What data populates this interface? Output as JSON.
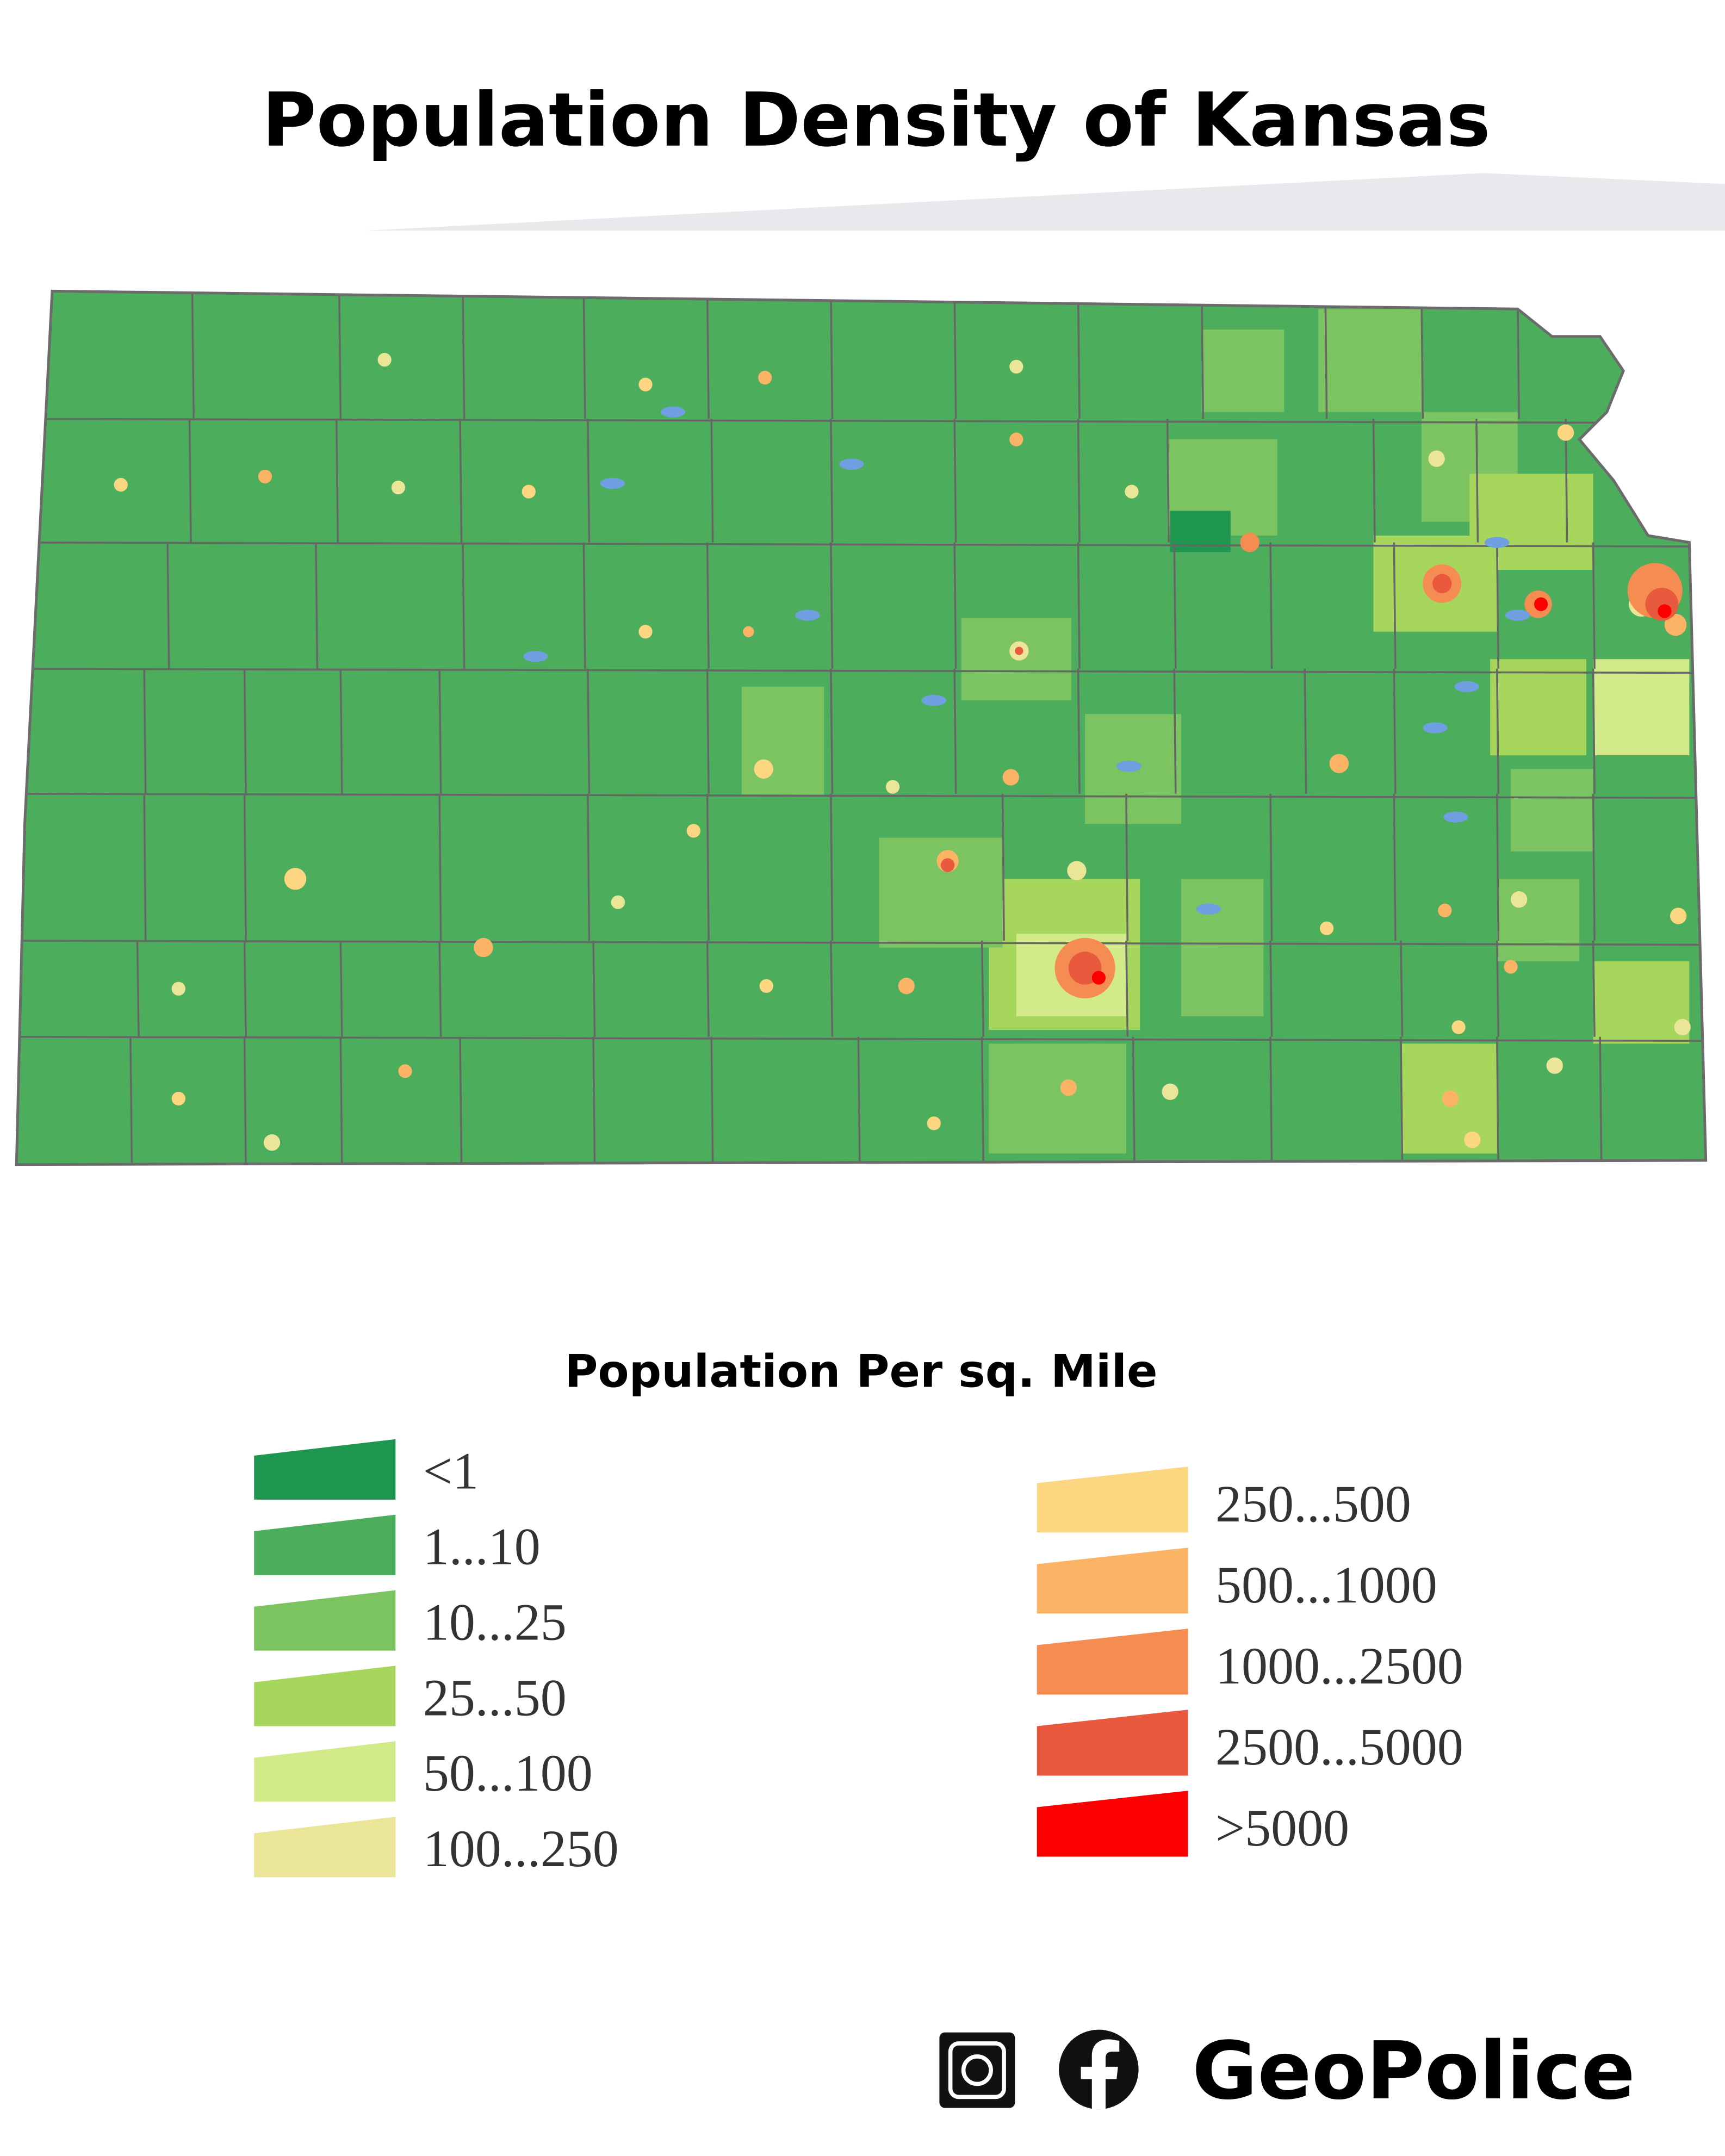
{
  "header": {
    "title": "Population Density of Kansas"
  },
  "legend": {
    "title": "Population Per sq. Mile",
    "items": [
      {
        "label": "<1",
        "color": "#1e9650"
      },
      {
        "label": "1...10",
        "color": "#4cae5c"
      },
      {
        "label": "10...25",
        "color": "#7cc462"
      },
      {
        "label": "25...50",
        "color": "#a6d65c"
      },
      {
        "label": "50...100",
        "color": "#d2ea8a"
      },
      {
        "label": "100...250",
        "color": "#ebe597"
      },
      {
        "label": "250...500",
        "color": "#fcd680"
      },
      {
        "label": "500...1000",
        "color": "#fbb365"
      },
      {
        "label": "1000...2500",
        "color": "#f58d52"
      },
      {
        "label": "2500...5000",
        "color": "#e8593e"
      },
      {
        "label": ">5000",
        "color": "#fb0000"
      }
    ]
  },
  "footer": {
    "brand": "GeoPolice"
  }
}
